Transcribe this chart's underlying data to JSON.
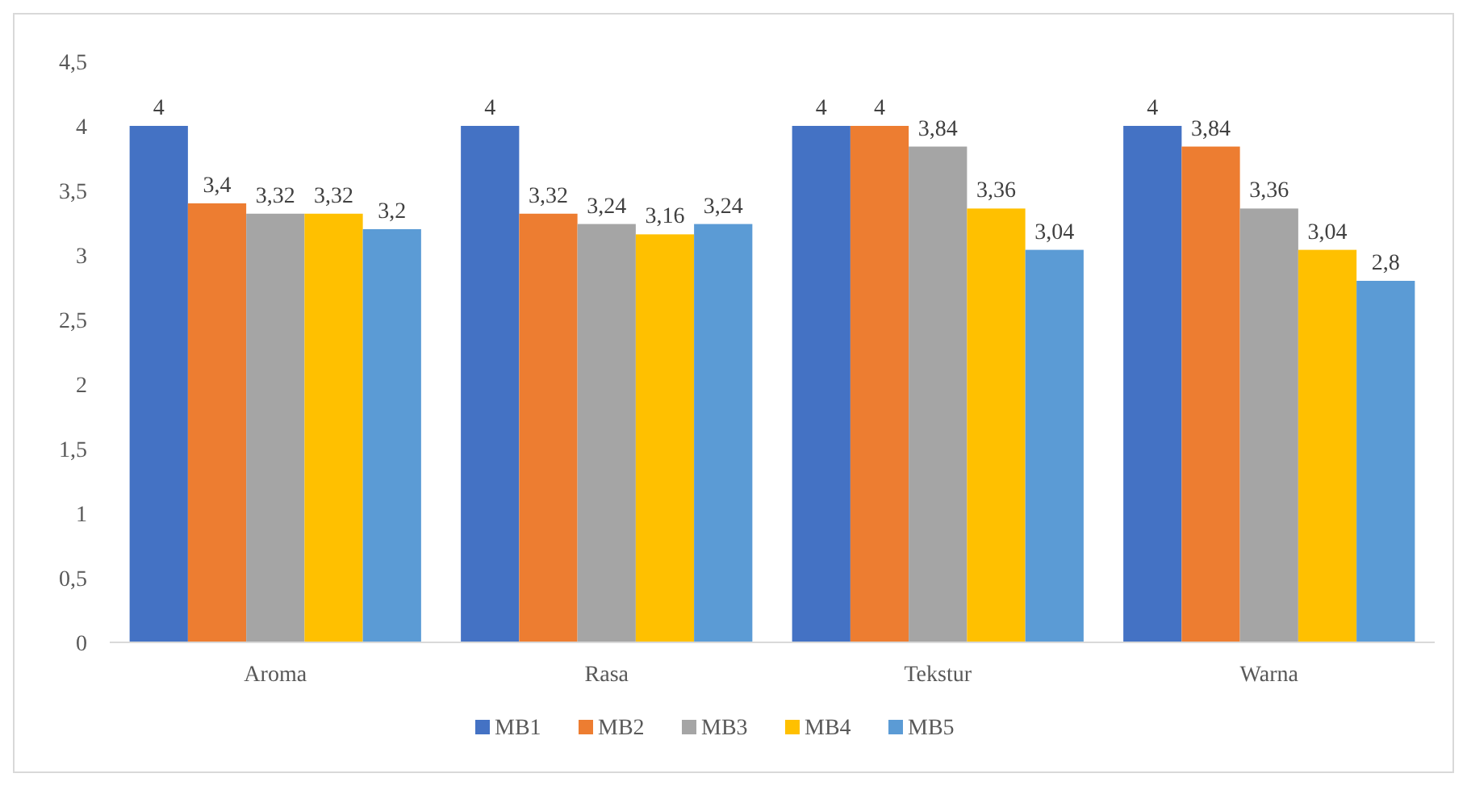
{
  "chart_data": {
    "type": "bar",
    "categories": [
      "Aroma",
      "Rasa",
      "Tekstur",
      "Warna"
    ],
    "series": [
      {
        "name": "MB1",
        "color": "#4472c4",
        "values": [
          4,
          4,
          4,
          4
        ],
        "value_labels": [
          "4",
          "4",
          "4",
          "4"
        ]
      },
      {
        "name": "MB2",
        "color": "#ed7d31",
        "values": [
          3.4,
          3.32,
          4,
          3.84
        ],
        "value_labels": [
          "3,4",
          "3,32",
          "4",
          "3,84"
        ]
      },
      {
        "name": "MB3",
        "color": "#a5a5a5",
        "values": [
          3.32,
          3.24,
          3.84,
          3.36
        ],
        "value_labels": [
          "3,32",
          "3,24",
          "3,84",
          "3,36"
        ]
      },
      {
        "name": "MB4",
        "color": "#ffc000",
        "values": [
          3.32,
          3.16,
          3.36,
          3.04
        ],
        "value_labels": [
          "3,32",
          "3,16",
          "3,36",
          "3,04"
        ]
      },
      {
        "name": "MB5",
        "color": "#5b9bd5",
        "values": [
          3.2,
          3.24,
          3.04,
          2.8
        ],
        "value_labels": [
          "3,2",
          "3,24",
          "3,04",
          "2,8"
        ]
      }
    ],
    "ylim": [
      0,
      4.5
    ],
    "yticks": [
      0,
      {
        "value": 0.5,
        "label": "0,5"
      },
      1,
      {
        "value": 1.5,
        "label": "1,5"
      },
      2,
      {
        "value": 2.5,
        "label": "2,5"
      },
      3,
      {
        "value": 3.5,
        "label": "3,5"
      },
      4,
      {
        "value": 4.5,
        "label": "4,5"
      }
    ],
    "grid": false,
    "legend": "bottom"
  }
}
